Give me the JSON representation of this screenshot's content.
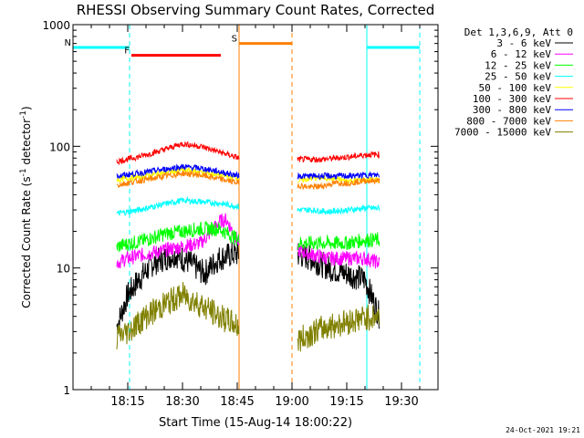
{
  "chart_data": {
    "type": "line",
    "title": "RHESSI Observing Summary Count Rates, Corrected",
    "xlabel": "Start Time (15-Aug-14 18:00:22)",
    "ylabel_main": "Corrected Count Rate (s",
    "ylabel_sup1": "-1",
    "ylabel_mid": " detector",
    "ylabel_sup2": "-1",
    "ylabel_end": ")",
    "yscale": "log",
    "ylim": [
      1,
      1000
    ],
    "xlim_min": [
      0,
      100
    ],
    "y_ticks": [
      "1",
      "10",
      "100",
      "1000"
    ],
    "x_ticks": [
      {
        "min": 15,
        "label": "18:15"
      },
      {
        "min": 30,
        "label": "18:30"
      },
      {
        "min": 45,
        "label": "18:45"
      },
      {
        "min": 60,
        "label": "19:00"
      },
      {
        "min": 75,
        "label": "19:15"
      },
      {
        "min": 90,
        "label": "19:30"
      }
    ],
    "legend_title": "Det 1,3,6,9, Att 0",
    "legend_placement": "right",
    "segments": [
      [
        12,
        45.5
      ],
      [
        61.5,
        84
      ]
    ],
    "series": [
      {
        "name": "3 - 6 keV",
        "color": "#000000",
        "values": [
          [
            12,
            3.3
          ],
          [
            15,
            6
          ],
          [
            18,
            8
          ],
          [
            22,
            11
          ],
          [
            28,
            13
          ],
          [
            32,
            11
          ],
          [
            36,
            9
          ],
          [
            40,
            12
          ],
          [
            44,
            13
          ],
          [
            45.5,
            13
          ],
          [
            61.5,
            13
          ],
          [
            65,
            12
          ],
          [
            70,
            10
          ],
          [
            75,
            9
          ],
          [
            80,
            8
          ],
          [
            84,
            4
          ]
        ]
      },
      {
        "name": "6 - 12 keV",
        "color": "#ff00ff",
        "values": [
          [
            12,
            11
          ],
          [
            15,
            12
          ],
          [
            20,
            13
          ],
          [
            25,
            14
          ],
          [
            30,
            15
          ],
          [
            35,
            16
          ],
          [
            38,
            20
          ],
          [
            40,
            24
          ],
          [
            42,
            25
          ],
          [
            45.5,
            16
          ],
          [
            61.5,
            14
          ],
          [
            65,
            13
          ],
          [
            70,
            12
          ],
          [
            75,
            12
          ],
          [
            80,
            12
          ],
          [
            84,
            11
          ]
        ]
      },
      {
        "name": "12 - 25 keV",
        "color": "#00ff00",
        "values": [
          [
            12,
            15
          ],
          [
            20,
            17
          ],
          [
            25,
            19
          ],
          [
            30,
            20
          ],
          [
            35,
            21
          ],
          [
            40,
            21
          ],
          [
            45.5,
            17
          ],
          [
            61.5,
            16
          ],
          [
            65,
            16
          ],
          [
            70,
            16
          ],
          [
            75,
            16
          ],
          [
            80,
            17
          ],
          [
            84,
            17
          ]
        ]
      },
      {
        "name": "25 - 50 keV",
        "color": "#00ffff",
        "values": [
          [
            12,
            28
          ],
          [
            18,
            30
          ],
          [
            24,
            33
          ],
          [
            30,
            36
          ],
          [
            35,
            35
          ],
          [
            40,
            34
          ],
          [
            45.5,
            32
          ],
          [
            61.5,
            30
          ],
          [
            65,
            30
          ],
          [
            70,
            29
          ],
          [
            75,
            30
          ],
          [
            80,
            31
          ],
          [
            84,
            31
          ]
        ]
      },
      {
        "name": "50 - 100 keV",
        "color": "#ffff00",
        "values": [
          [
            12,
            53
          ],
          [
            18,
            56
          ],
          [
            24,
            60
          ],
          [
            30,
            64
          ],
          [
            35,
            62
          ],
          [
            40,
            58
          ],
          [
            45.5,
            55
          ],
          [
            61.5,
            52
          ],
          [
            66,
            55
          ],
          [
            70,
            55
          ],
          [
            75,
            52
          ],
          [
            80,
            53
          ],
          [
            84,
            53
          ]
        ]
      },
      {
        "name": "100 - 300 keV",
        "color": "#ff0000",
        "values": [
          [
            12,
            75
          ],
          [
            18,
            82
          ],
          [
            24,
            92
          ],
          [
            30,
            105
          ],
          [
            35,
            100
          ],
          [
            40,
            90
          ],
          [
            45.5,
            80
          ],
          [
            61.5,
            78
          ],
          [
            68,
            78
          ],
          [
            72,
            80
          ],
          [
            76,
            82
          ],
          [
            80,
            85
          ],
          [
            84,
            86
          ]
        ]
      },
      {
        "name": "300 - 800 keV",
        "color": "#0000ff",
        "values": [
          [
            12,
            57
          ],
          [
            18,
            60
          ],
          [
            24,
            64
          ],
          [
            30,
            68
          ],
          [
            35,
            66
          ],
          [
            40,
            62
          ],
          [
            45.5,
            57
          ],
          [
            61.5,
            57
          ],
          [
            68,
            57
          ],
          [
            72,
            57
          ],
          [
            76,
            57
          ],
          [
            80,
            58
          ],
          [
            84,
            58
          ]
        ]
      },
      {
        "name": "800 - 7000 keV",
        "color": "#ff8000",
        "values": [
          [
            12,
            48
          ],
          [
            18,
            52
          ],
          [
            24,
            56
          ],
          [
            30,
            60
          ],
          [
            35,
            58
          ],
          [
            40,
            54
          ],
          [
            45.5,
            50
          ],
          [
            61.5,
            48
          ],
          [
            65,
            46
          ],
          [
            68,
            47
          ],
          [
            72,
            50
          ],
          [
            76,
            50
          ],
          [
            80,
            52
          ],
          [
            84,
            52
          ]
        ]
      },
      {
        "name": "7000 - 15000 keV",
        "color": "#808000",
        "values": [
          [
            12,
            2.7
          ],
          [
            15,
            3
          ],
          [
            20,
            4
          ],
          [
            25,
            5
          ],
          [
            30,
            6
          ],
          [
            35,
            5
          ],
          [
            40,
            4
          ],
          [
            45.5,
            3.3
          ],
          [
            61.5,
            2.5
          ],
          [
            66,
            3
          ],
          [
            70,
            3.3
          ],
          [
            75,
            3.6
          ],
          [
            80,
            3.9
          ],
          [
            84,
            4
          ]
        ]
      }
    ],
    "annotations": [
      {
        "label": "N",
        "color": "#00ffff",
        "bar": [
          0,
          15.5
        ],
        "y": 650
      },
      {
        "label": "F",
        "color": "#ff0000",
        "bar": [
          16,
          40.5
        ],
        "y": 560
      },
      {
        "label": "S",
        "color": "#ff8000",
        "bar": [
          45.5,
          60
        ],
        "y": 700
      },
      {
        "label": "",
        "color": "#00ffff",
        "bar": [
          80.5,
          95
        ],
        "y": 650
      }
    ],
    "vlines": [
      {
        "min": 0,
        "color": "#00ffff",
        "style": "solid"
      },
      {
        "min": 15.5,
        "color": "#00ffff",
        "style": "dashed"
      },
      {
        "min": 45.5,
        "color": "#ff8000",
        "style": "solid"
      },
      {
        "min": 60,
        "color": "#ff8000",
        "style": "dashed"
      },
      {
        "min": 80.5,
        "color": "#00ffff",
        "style": "solid"
      },
      {
        "min": 95,
        "color": "#00ffff",
        "style": "dashed"
      }
    ]
  },
  "footer_timestamp": "24-Oct-2021 19:21"
}
